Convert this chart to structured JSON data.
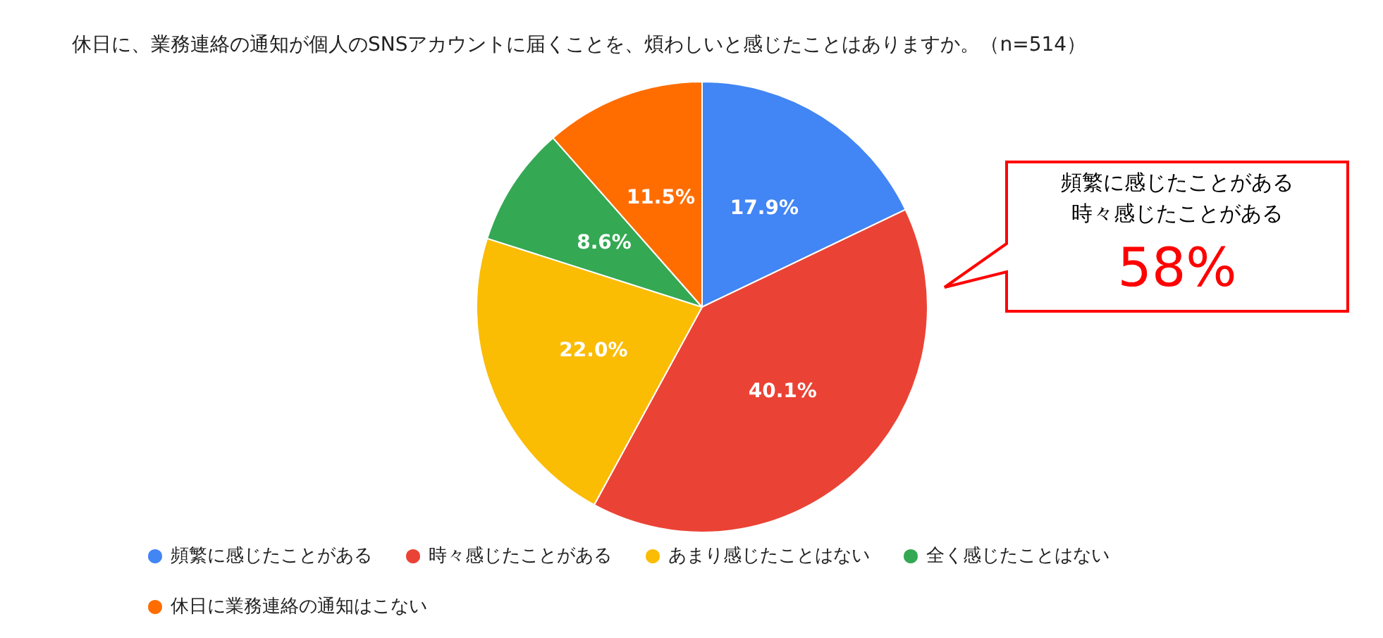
{
  "chart_data": {
    "type": "pie",
    "title": "休日に、業務連絡の通知が個人のSNSアカウントに届くことを、煩わしいと感じたことはありますか。（n=514）",
    "categories": [
      "頻繁に感じたことがある",
      "時々感じたことがある",
      "あまり感じたことはない",
      "全く感じたことはない",
      "休日に業務連絡の通知はこない"
    ],
    "values": [
      17.9,
      40.1,
      22.0,
      8.6,
      11.5
    ],
    "colors": [
      "#4285f4",
      "#ea4335",
      "#fbbc04",
      "#34a853",
      "#ff6d01"
    ],
    "value_labels": [
      "17.9%",
      "40.1%",
      "22.0%",
      "8.6%",
      "11.5%"
    ],
    "legend": "bottom",
    "annotations": [
      "頻繁に感じたことがある",
      "時々感じたことがある",
      "58%"
    ]
  }
}
